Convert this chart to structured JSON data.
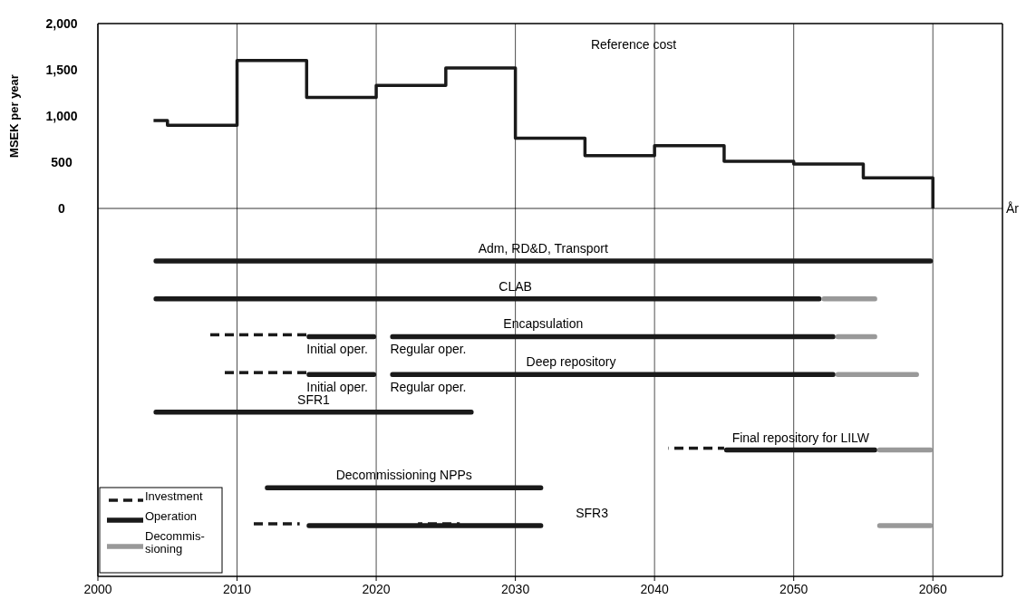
{
  "chart_data": [
    {
      "type": "step",
      "ylabel": "MSEK per year",
      "xlabel": "År",
      "xlim": [
        2000,
        2065
      ],
      "ylim": [
        0,
        2000
      ],
      "yticks": [
        0,
        500,
        {
          "value": 1000,
          "label": "1,000"
        },
        {
          "value": 1500,
          "label": "1,500"
        },
        {
          "value": 2000,
          "label": "2,000"
        }
      ],
      "xticks": [
        2000,
        2010,
        2020,
        2030,
        2040,
        2050,
        2060
      ],
      "tick_labels": "y",
      "grid": "x",
      "x": [
        2004,
        2005,
        2010,
        2015,
        2020,
        2025,
        2030,
        2035,
        2040,
        2045,
        2050,
        2055,
        2060
      ],
      "series": [
        {
          "color": "#1a1a1a",
          "values": [
            950,
            900,
            1600,
            1200,
            1330,
            1520,
            760,
            570,
            680,
            510,
            480,
            330,
            0
          ]
        }
      ],
      "annotations": [
        "Reference cost"
      ]
    },
    {
      "type": "bar",
      "orientation": "horizontal",
      "xlim": [
        2000,
        2065
      ],
      "xticks": [
        2000,
        2010,
        2020,
        2030,
        2040,
        2050,
        2060
      ],
      "tick_labels": "x",
      "grid": "x",
      "legend": "bottom left",
      "categories": [
        "Adm, RD&D, Transport",
        "CLAB",
        "Encapsulation",
        "Deep repository",
        "SFR1",
        "Final repository for LILW",
        "Decommissioning NPPs",
        "SFR3"
      ],
      "series": [
        {
          "name": "Investment",
          "color": "#1a1a1a",
          "line_style": "dashed",
          "base": [
            null,
            null,
            2008,
            2009,
            null,
            2041,
            null,
            2011
          ],
          "values": [
            null,
            null,
            7,
            6,
            null,
            4,
            null,
            3.5
          ]
        },
        {
          "color": "#1a1a1a",
          "line_style": "dashed",
          "base": [
            null,
            null,
            null,
            null,
            null,
            null,
            null,
            2023
          ],
          "values": [
            null,
            null,
            null,
            null,
            null,
            null,
            null,
            3
          ]
        },
        {
          "name": "Operation",
          "color": "#1a1a1a",
          "line_style": "solid",
          "base": [
            2004,
            2004,
            2015,
            2015,
            2004,
            2045,
            2012,
            2015
          ],
          "values": [
            56,
            48,
            5,
            5,
            23,
            11,
            20,
            17
          ]
        },
        {
          "color": "#1a1a1a",
          "line_style": "solid",
          "base": [
            null,
            null,
            2021,
            2021,
            null,
            null,
            null,
            null
          ],
          "values": [
            null,
            null,
            32,
            32,
            null,
            null,
            null,
            null
          ]
        },
        {
          "name": "Decommis- sioning",
          "color": "#999999",
          "line_style": "solid",
          "base": [
            null,
            2052,
            2053,
            2053,
            null,
            2056,
            null,
            2056
          ],
          "values": [
            null,
            4,
            3,
            6,
            null,
            4,
            null,
            4
          ]
        }
      ],
      "annotations": [
        "Initial oper.",
        "Regular oper.",
        "Initial oper.",
        "Regular oper."
      ]
    }
  ]
}
